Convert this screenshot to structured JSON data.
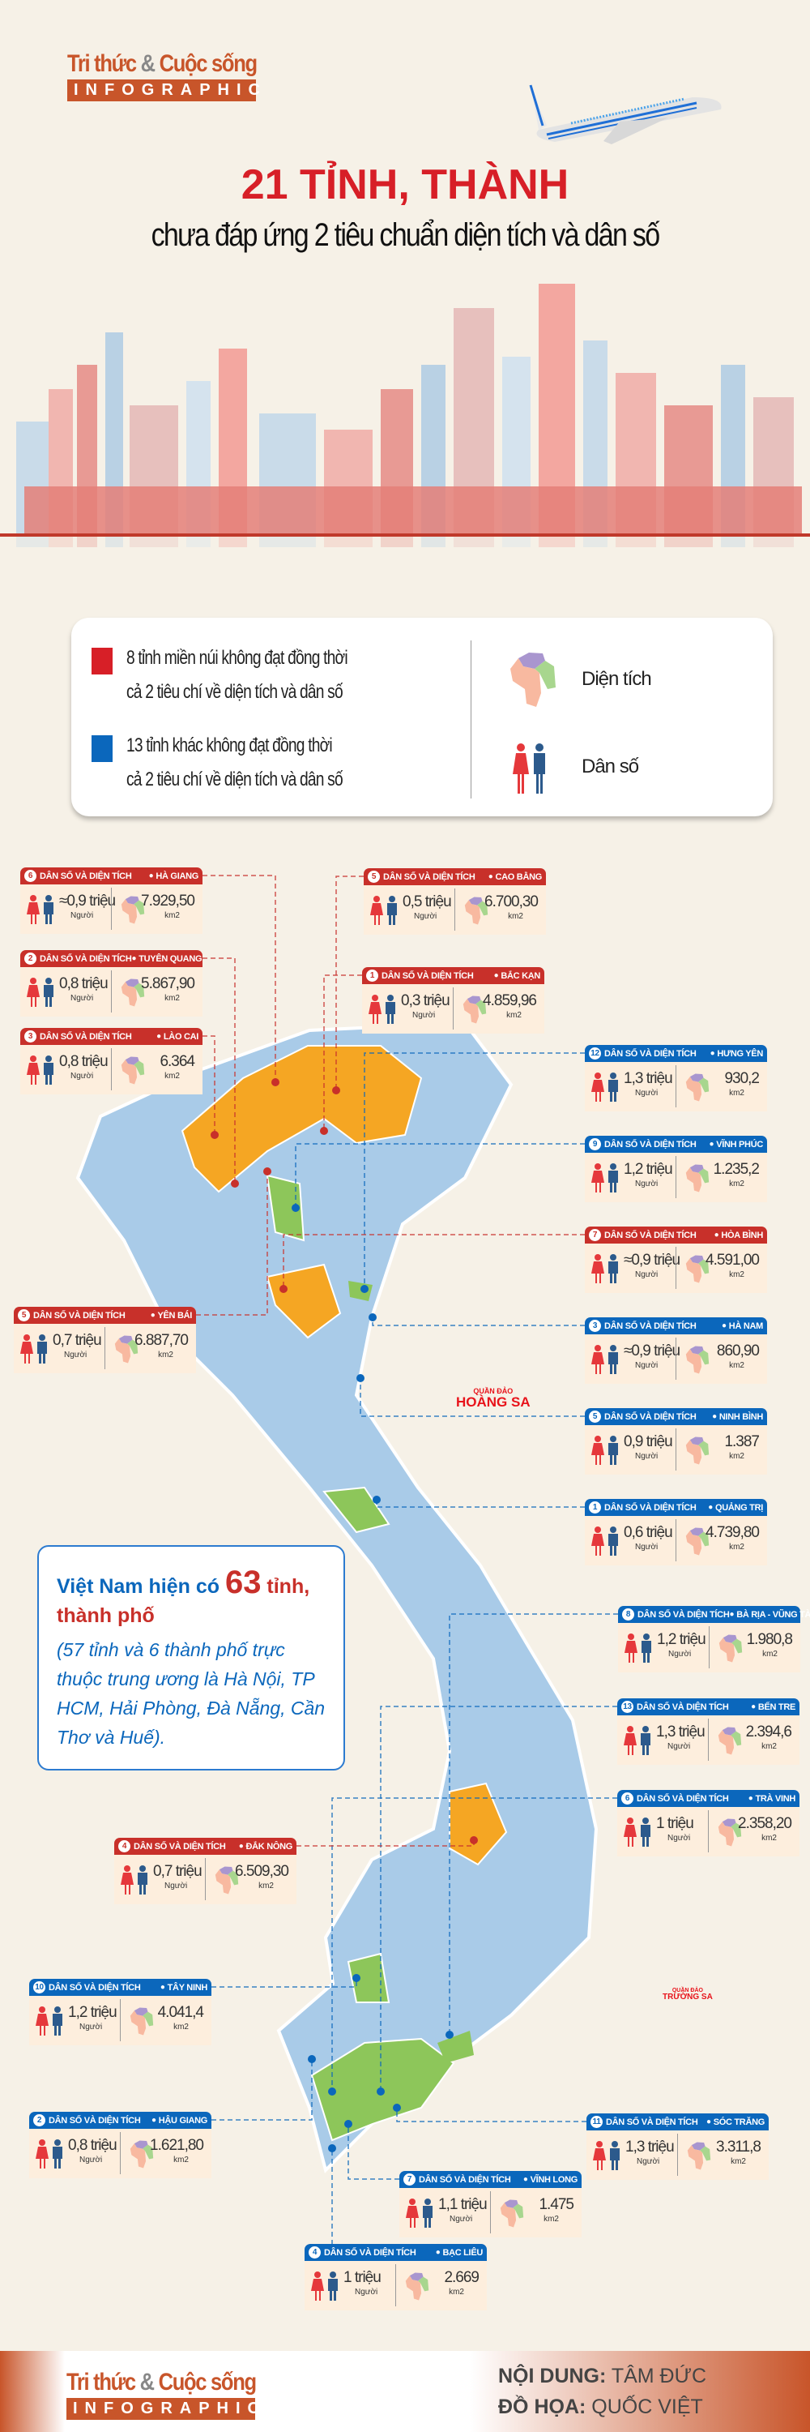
{
  "header": {
    "logo_line1": "Tri thức",
    "logo_amp": "&",
    "logo_line1b": "Cuộc sống",
    "logo_line2": "INFOGRAPHIC",
    "title": "21 TỈNH, THÀNH",
    "subtitle": "chưa đáp ứng 2 tiêu chuẩn diện tích và dân số"
  },
  "legend": {
    "red_text_1": "8 tỉnh miền núi không đạt đồng thời",
    "red_text_2": "cả 2 tiêu chí về diện tích và dân số",
    "blue_text_1": "13 tỉnh khác không đạt đồng thời",
    "blue_text_2": "cả 2 tiêu chí về diện tích và dân số",
    "area_label": "Diện tích",
    "population_label": "Dân số"
  },
  "colors": {
    "red": "#c8302a",
    "blue": "#0b67bc",
    "map_base": "#a9cbe8",
    "map_orange": "#f5a623",
    "map_green": "#8dc65a",
    "woman": "#e5383b",
    "man": "#2c5a8c"
  },
  "card_label": "DÂN SỐ VÀ DIỆN TÍCH",
  "population_unit": "Người",
  "area_unit": "km2",
  "cards": [
    {
      "num": "6",
      "province": "HÀ GIANG",
      "group": "red",
      "population": "≈0,9 triệu",
      "area": "7.929,50"
    },
    {
      "num": "2",
      "province": "TUYÊN QUANG",
      "group": "red",
      "population": "0,8 triệu",
      "area": "5.867,90"
    },
    {
      "num": "3",
      "province": "LÀO CAI",
      "group": "red",
      "population": "0,8 triệu",
      "area": "6.364"
    },
    {
      "num": "5",
      "province": "CAO BẰNG",
      "group": "red",
      "population": "0,5 triệu",
      "area": "6.700,30"
    },
    {
      "num": "1",
      "province": "BẮC KẠN",
      "group": "red",
      "population": "0,3 triệu",
      "area": "4.859,96"
    },
    {
      "num": "12",
      "province": "HƯNG YÊN",
      "group": "blue",
      "population": "1,3 triệu",
      "area": "930,2"
    },
    {
      "num": "9",
      "province": "VĨNH PHÚC",
      "group": "blue",
      "population": "1,2 triệu",
      "area": "1.235,2"
    },
    {
      "num": "7",
      "province": "HÒA BÌNH",
      "group": "red",
      "population": "≈0,9 triệu",
      "area": "4.591,00"
    },
    {
      "num": "3",
      "province": "HÀ NAM",
      "group": "blue",
      "population": "≈0,9 triệu",
      "area": "860,90"
    },
    {
      "num": "5",
      "province": "NINH BÌNH",
      "group": "blue",
      "population": "0,9 triệu",
      "area": "1.387"
    },
    {
      "num": "1",
      "province": "QUẢNG TRỊ",
      "group": "blue",
      "population": "0,6 triệu",
      "area": "4.739,80"
    },
    {
      "num": "5",
      "province": "YÊN BÁI",
      "group": "red",
      "population": "0,7 triệu",
      "area": "6.887,70"
    },
    {
      "num": "8",
      "province": "BÀ RỊA - VŨNG TÀU",
      "group": "blue",
      "population": "1,2 triệu",
      "area": "1.980,8"
    },
    {
      "num": "13",
      "province": "BẾN TRE",
      "group": "blue",
      "population": "1,3 triệu",
      "area": "2.394,6"
    },
    {
      "num": "6",
      "province": "TRÀ VINH",
      "group": "blue",
      "population": "1 triệu",
      "area": "2.358,20"
    },
    {
      "num": "4",
      "province": "ĐẮK NÔNG",
      "group": "red",
      "population": "0,7 triệu",
      "area": "6.509,30"
    },
    {
      "num": "10",
      "province": "TÂY NINH",
      "group": "blue",
      "population": "1,2 triệu",
      "area": "4.041,4"
    },
    {
      "num": "2",
      "province": "HẬU GIANG",
      "group": "blue",
      "population": "0,8 triệu",
      "area": "1.621,80"
    },
    {
      "num": "11",
      "province": "SÓC TRĂNG",
      "group": "blue",
      "population": "1,3 triệu",
      "area": "3.311,8"
    },
    {
      "num": "7",
      "province": "VĨNH LONG",
      "group": "blue",
      "population": "1,1 triệu",
      "area": "1.475"
    },
    {
      "num": "4",
      "province": "BẠC LIÊU",
      "group": "blue",
      "population": "1 triệu",
      "area": "2.669"
    }
  ],
  "islands": {
    "hoang_sa_small": "QUẦN ĐẢO",
    "hoang_sa": "HOÀNG SA",
    "truong_sa_small": "QUẦN ĐẢO",
    "truong_sa": "TRƯỜNG SA"
  },
  "info": {
    "heading_1": "Việt Nam hiện có",
    "heading_number": "63",
    "heading_2": "tỉnh,",
    "heading_3": "thành phố",
    "body": "(57 tỉnh và 6 thành phố trực thuộc trung ương là Hà Nội, TP HCM, Hải Phòng, Đà Nẵng, Cần Thơ và Huế)."
  },
  "footer": {
    "content_label": "NỘI DUNG:",
    "content_author": "TÂM ĐỨC",
    "graphics_label": "ĐỒ HỌA:",
    "graphics_author": "QUỐC VIỆT"
  }
}
